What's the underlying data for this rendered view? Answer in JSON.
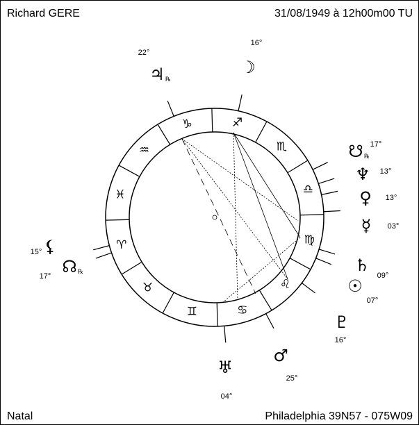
{
  "header": {
    "name": "Richard GERE",
    "datetime": "31/08/1949 à 12h00m00 TU"
  },
  "footer": {
    "chart_type": "Natal",
    "location": "Philadelphia  39N57 - 075W09"
  },
  "signs": [
    "♐",
    "♑",
    "♒",
    "♓",
    "♈",
    "♉",
    "♊",
    "♋",
    "♌",
    "♍",
    "♎",
    "♏"
  ],
  "planets": [
    {
      "glyph": "♃",
      "degree": "22°",
      "retrograde": "℞"
    },
    {
      "glyph": "☽",
      "degree": "16°"
    },
    {
      "glyph": "☋",
      "degree": "17°",
      "retrograde": "℞"
    },
    {
      "glyph": "♆",
      "degree": "13°"
    },
    {
      "glyph": "♀",
      "degree": "13°"
    },
    {
      "glyph": "☿",
      "degree": "03°"
    },
    {
      "glyph": "♄",
      "degree": "09°"
    },
    {
      "glyph": "☉",
      "degree": "07°"
    },
    {
      "glyph": "♇",
      "degree": "16°"
    },
    {
      "glyph": "♂",
      "degree": "25°"
    },
    {
      "glyph": "♅",
      "degree": "04°"
    },
    {
      "glyph": "⚸",
      "degree": "15°"
    },
    {
      "glyph": "☊",
      "degree": "17°",
      "retrograde": "℞"
    }
  ]
}
